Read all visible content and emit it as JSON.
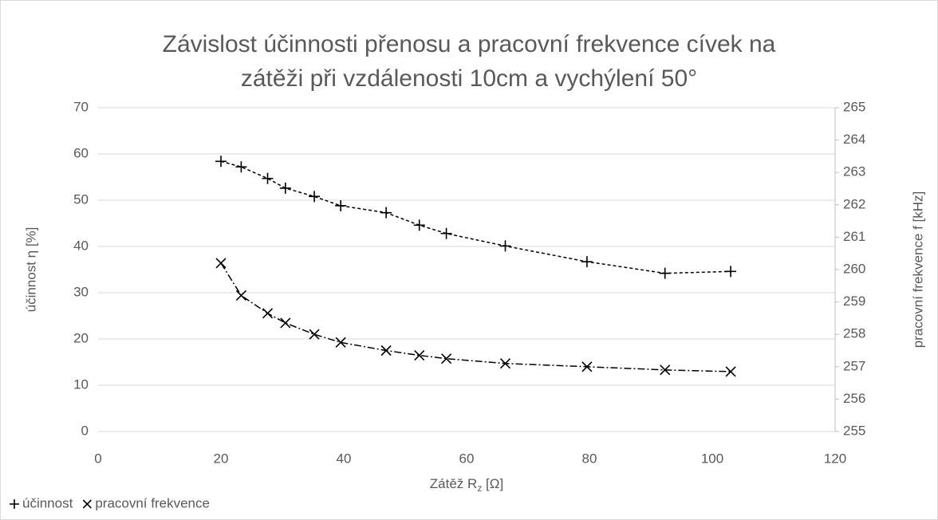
{
  "chart_data": {
    "type": "scatter",
    "title": [
      "Závislost účinnosti přenosu a pracovní frekvence cívek na",
      "zátěži při vzdálenosti 10cm a vychýlení 50°"
    ],
    "x_label": [
      "Zátěž R",
      "z",
      " [Ω]"
    ],
    "y_label": "účinnost η [%]",
    "y2_label": "pracovní frekvence f [kHz]",
    "xlim": [
      0,
      120
    ],
    "xticks": [
      0,
      20,
      40,
      60,
      80,
      100,
      120
    ],
    "ylim": [
      0,
      70
    ],
    "yticks": [
      0,
      10,
      20,
      30,
      40,
      50,
      60,
      70
    ],
    "y2lim": [
      255,
      265
    ],
    "y2ticks": [
      255,
      256,
      257,
      258,
      259,
      260,
      261,
      262,
      263,
      264,
      265
    ],
    "grid": true,
    "legend": "bottom-left",
    "x": [
      20,
      23.3,
      27.6,
      30.5,
      35.2,
      39.5,
      46.9,
      52.3,
      56.7,
      66.3,
      79.6,
      92.3,
      103
    ],
    "series": [
      {
        "name": "účinnost",
        "color": "#000000",
        "marker": "+",
        "values": [
          58.4,
          57.2,
          54.7,
          52.6,
          50.8,
          48.8,
          47.3,
          44.6,
          42.8,
          40.1,
          36.7,
          34.2,
          34.6
        ]
      },
      {
        "name": "pracovní frekvence",
        "color": "#000000",
        "marker": "x",
        "axis": "y2",
        "values": [
          260.2,
          259.2,
          258.65,
          258.35,
          258.0,
          257.75,
          257.5,
          257.35,
          257.25,
          257.1,
          257.0,
          256.9,
          256.85
        ]
      }
    ]
  }
}
